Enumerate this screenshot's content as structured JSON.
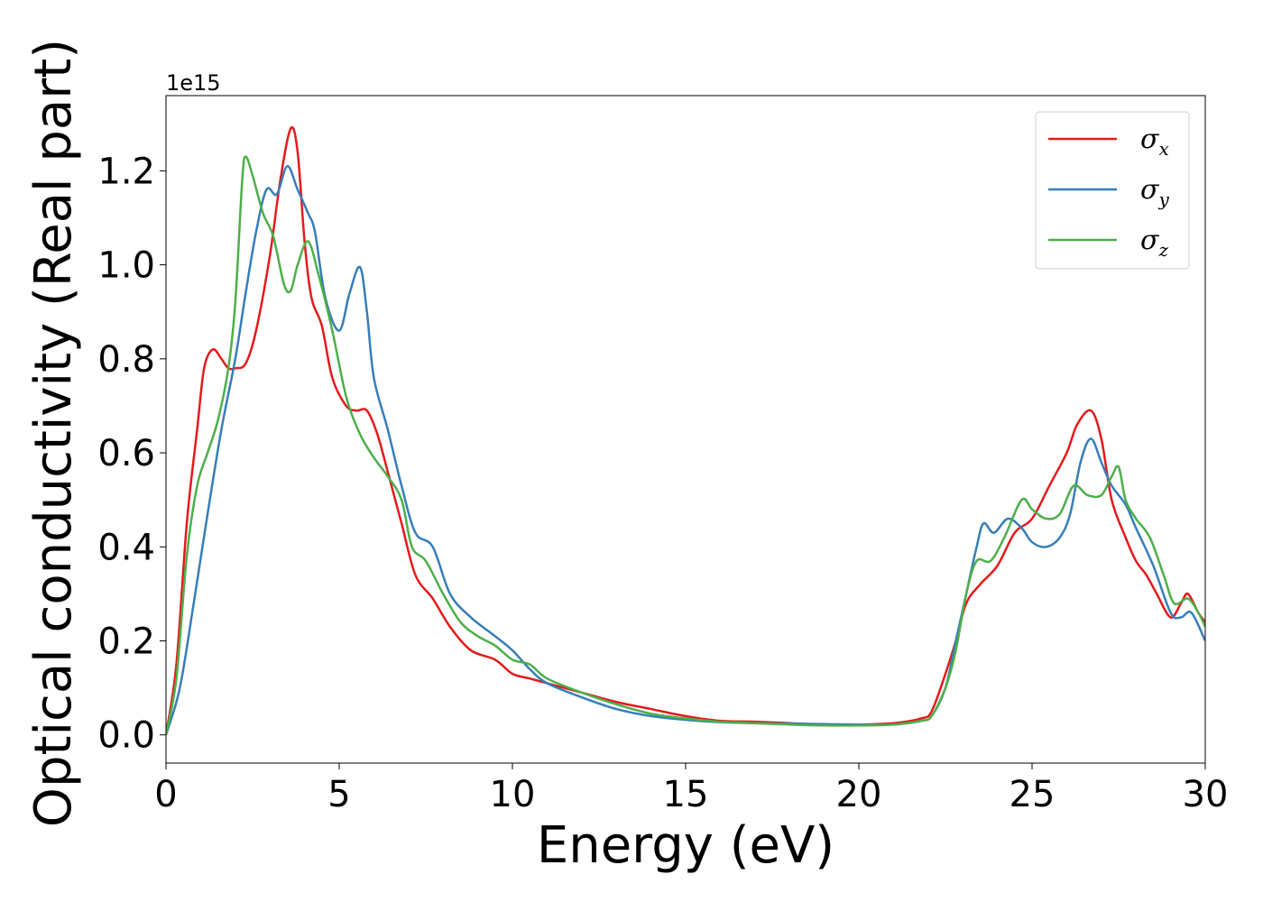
{
  "chart_data": {
    "type": "line",
    "xlabel": "Energy (eV)",
    "ylabel": "Optical conductivity (Real part)",
    "offset_text": "1e15",
    "xlim": [
      0,
      30
    ],
    "ylim": [
      -0.06,
      1.36
    ],
    "x_ticks": [
      0,
      5,
      10,
      15,
      20,
      25,
      30
    ],
    "y_ticks": [
      0.0,
      0.2,
      0.4,
      0.6,
      0.8,
      1.0,
      1.2
    ],
    "x_tick_labels": [
      "0",
      "5",
      "10",
      "15",
      "20",
      "25",
      "30"
    ],
    "y_tick_labels": [
      "0.0",
      "0.2",
      "0.4",
      "0.6",
      "0.8",
      "1.0",
      "1.2"
    ],
    "grid": false,
    "legend_position": "top-right",
    "series": [
      {
        "name": "σx",
        "symbol": "σ",
        "subscript": "x",
        "color": "#e41a1c",
        "points": [
          [
            0,
            0
          ],
          [
            0.3,
            0.15
          ],
          [
            0.6,
            0.45
          ],
          [
            0.9,
            0.65
          ],
          [
            1.1,
            0.78
          ],
          [
            1.35,
            0.82
          ],
          [
            1.6,
            0.8
          ],
          [
            1.8,
            0.78
          ],
          [
            2.0,
            0.78
          ],
          [
            2.3,
            0.79
          ],
          [
            2.6,
            0.86
          ],
          [
            3.0,
            1.02
          ],
          [
            3.3,
            1.18
          ],
          [
            3.6,
            1.29
          ],
          [
            3.8,
            1.24
          ],
          [
            4.0,
            1.05
          ],
          [
            4.2,
            0.93
          ],
          [
            4.5,
            0.87
          ],
          [
            4.8,
            0.76
          ],
          [
            5.2,
            0.7
          ],
          [
            5.5,
            0.69
          ],
          [
            5.8,
            0.69
          ],
          [
            6.1,
            0.64
          ],
          [
            6.4,
            0.56
          ],
          [
            6.8,
            0.45
          ],
          [
            7.2,
            0.34
          ],
          [
            7.7,
            0.29
          ],
          [
            8.2,
            0.23
          ],
          [
            8.8,
            0.18
          ],
          [
            9.5,
            0.16
          ],
          [
            10.0,
            0.13
          ],
          [
            10.5,
            0.12
          ],
          [
            11.0,
            0.11
          ],
          [
            12.0,
            0.09
          ],
          [
            13.0,
            0.07
          ],
          [
            14.0,
            0.055
          ],
          [
            15.0,
            0.04
          ],
          [
            16.0,
            0.03
          ],
          [
            17.0,
            0.028
          ],
          [
            18.0,
            0.025
          ],
          [
            19.0,
            0.022
          ],
          [
            20.0,
            0.022
          ],
          [
            21.0,
            0.025
          ],
          [
            21.8,
            0.035
          ],
          [
            22.1,
            0.05
          ],
          [
            22.5,
            0.13
          ],
          [
            22.8,
            0.2
          ],
          [
            23.1,
            0.28
          ],
          [
            23.5,
            0.32
          ],
          [
            24.0,
            0.36
          ],
          [
            24.5,
            0.43
          ],
          [
            25.0,
            0.46
          ],
          [
            25.5,
            0.53
          ],
          [
            26.0,
            0.6
          ],
          [
            26.3,
            0.66
          ],
          [
            26.7,
            0.69
          ],
          [
            27.0,
            0.63
          ],
          [
            27.3,
            0.5
          ],
          [
            27.7,
            0.42
          ],
          [
            28.0,
            0.37
          ],
          [
            28.3,
            0.34
          ],
          [
            28.6,
            0.3
          ],
          [
            29.0,
            0.25
          ],
          [
            29.3,
            0.28
          ],
          [
            29.5,
            0.3
          ],
          [
            29.8,
            0.26
          ],
          [
            30.0,
            0.24
          ]
        ]
      },
      {
        "name": "σy",
        "symbol": "σ",
        "subscript": "y",
        "color": "#377eb8",
        "points": [
          [
            0,
            0
          ],
          [
            0.4,
            0.1
          ],
          [
            0.8,
            0.28
          ],
          [
            1.2,
            0.47
          ],
          [
            1.6,
            0.65
          ],
          [
            2.0,
            0.8
          ],
          [
            2.3,
            0.94
          ],
          [
            2.6,
            1.07
          ],
          [
            2.9,
            1.16
          ],
          [
            3.2,
            1.15
          ],
          [
            3.5,
            1.21
          ],
          [
            3.8,
            1.16
          ],
          [
            4.1,
            1.11
          ],
          [
            4.3,
            1.07
          ],
          [
            4.6,
            0.93
          ],
          [
            5.0,
            0.86
          ],
          [
            5.3,
            0.94
          ],
          [
            5.6,
            0.995
          ],
          [
            5.8,
            0.9
          ],
          [
            6.0,
            0.76
          ],
          [
            6.4,
            0.65
          ],
          [
            6.8,
            0.53
          ],
          [
            7.2,
            0.43
          ],
          [
            7.7,
            0.4
          ],
          [
            8.2,
            0.3
          ],
          [
            8.8,
            0.25
          ],
          [
            9.5,
            0.21
          ],
          [
            10.0,
            0.18
          ],
          [
            10.5,
            0.14
          ],
          [
            11.0,
            0.11
          ],
          [
            12.0,
            0.08
          ],
          [
            13.0,
            0.055
          ],
          [
            14.0,
            0.04
          ],
          [
            15.0,
            0.032
          ],
          [
            16.0,
            0.027
          ],
          [
            17.0,
            0.025
          ],
          [
            18.0,
            0.024
          ],
          [
            19.0,
            0.023
          ],
          [
            20.0,
            0.022
          ],
          [
            21.0,
            0.022
          ],
          [
            21.8,
            0.03
          ],
          [
            22.1,
            0.04
          ],
          [
            22.5,
            0.1
          ],
          [
            22.8,
            0.2
          ],
          [
            23.1,
            0.3
          ],
          [
            23.4,
            0.4
          ],
          [
            23.6,
            0.45
          ],
          [
            23.9,
            0.43
          ],
          [
            24.3,
            0.46
          ],
          [
            24.7,
            0.44
          ],
          [
            25.0,
            0.41
          ],
          [
            25.4,
            0.4
          ],
          [
            25.8,
            0.42
          ],
          [
            26.1,
            0.47
          ],
          [
            26.4,
            0.58
          ],
          [
            26.7,
            0.63
          ],
          [
            27.0,
            0.58
          ],
          [
            27.3,
            0.53
          ],
          [
            27.7,
            0.49
          ],
          [
            28.0,
            0.44
          ],
          [
            28.5,
            0.36
          ],
          [
            29.0,
            0.26
          ],
          [
            29.3,
            0.25
          ],
          [
            29.6,
            0.26
          ],
          [
            30.0,
            0.2
          ]
        ]
      },
      {
        "name": "σz",
        "symbol": "σ",
        "subscript": "z",
        "color": "#4daf4a",
        "points": [
          [
            0,
            0
          ],
          [
            0.3,
            0.12
          ],
          [
            0.6,
            0.38
          ],
          [
            0.9,
            0.53
          ],
          [
            1.2,
            0.6
          ],
          [
            1.5,
            0.67
          ],
          [
            1.8,
            0.78
          ],
          [
            2.0,
            0.92
          ],
          [
            2.2,
            1.18
          ],
          [
            2.3,
            1.23
          ],
          [
            2.5,
            1.19
          ],
          [
            2.8,
            1.11
          ],
          [
            3.1,
            1.06
          ],
          [
            3.4,
            0.96
          ],
          [
            3.6,
            0.945
          ],
          [
            3.8,
            1.0
          ],
          [
            4.1,
            1.05
          ],
          [
            4.4,
            0.98
          ],
          [
            4.8,
            0.86
          ],
          [
            5.2,
            0.72
          ],
          [
            5.6,
            0.64
          ],
          [
            6.0,
            0.59
          ],
          [
            6.4,
            0.55
          ],
          [
            6.8,
            0.5
          ],
          [
            7.1,
            0.4
          ],
          [
            7.5,
            0.37
          ],
          [
            8.0,
            0.3
          ],
          [
            8.5,
            0.24
          ],
          [
            9.0,
            0.21
          ],
          [
            9.5,
            0.19
          ],
          [
            10.0,
            0.16
          ],
          [
            10.5,
            0.15
          ],
          [
            11.0,
            0.12
          ],
          [
            12.0,
            0.09
          ],
          [
            13.0,
            0.065
          ],
          [
            14.0,
            0.045
          ],
          [
            15.0,
            0.035
          ],
          [
            16.0,
            0.028
          ],
          [
            17.0,
            0.025
          ],
          [
            18.0,
            0.022
          ],
          [
            19.0,
            0.02
          ],
          [
            20.0,
            0.02
          ],
          [
            21.0,
            0.022
          ],
          [
            21.8,
            0.03
          ],
          [
            22.1,
            0.04
          ],
          [
            22.5,
            0.1
          ],
          [
            22.8,
            0.18
          ],
          [
            23.1,
            0.3
          ],
          [
            23.4,
            0.37
          ],
          [
            23.8,
            0.37
          ],
          [
            24.2,
            0.42
          ],
          [
            24.7,
            0.5
          ],
          [
            25.0,
            0.48
          ],
          [
            25.4,
            0.46
          ],
          [
            25.8,
            0.47
          ],
          [
            26.2,
            0.53
          ],
          [
            26.6,
            0.51
          ],
          [
            27.0,
            0.51
          ],
          [
            27.3,
            0.55
          ],
          [
            27.5,
            0.57
          ],
          [
            27.7,
            0.5
          ],
          [
            28.0,
            0.46
          ],
          [
            28.4,
            0.42
          ],
          [
            28.8,
            0.34
          ],
          [
            29.1,
            0.28
          ],
          [
            29.5,
            0.29
          ],
          [
            29.8,
            0.26
          ],
          [
            30.0,
            0.23
          ]
        ]
      }
    ]
  }
}
